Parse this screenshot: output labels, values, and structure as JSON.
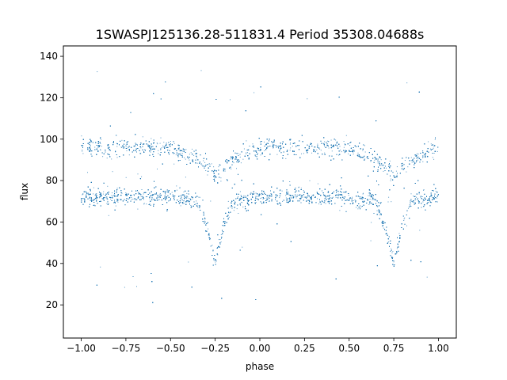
{
  "chart_data": {
    "type": "scatter",
    "title": "1SWASPJ125136.28-511831.4 Period 35308.04688s",
    "xlabel": "phase",
    "ylabel": "flux",
    "xlim": [
      -1.1,
      1.1
    ],
    "ylim": [
      4,
      145
    ],
    "xticks": [
      -1.0,
      -0.75,
      -0.5,
      -0.25,
      0.0,
      0.25,
      0.5,
      0.75,
      1.0
    ],
    "xtick_labels": [
      "−1.00",
      "−0.75",
      "−0.50",
      "−0.25",
      "0.00",
      "0.25",
      "0.50",
      "0.75",
      "1.00"
    ],
    "yticks": [
      20,
      40,
      60,
      80,
      100,
      120,
      140
    ],
    "ytick_labels": [
      "20",
      "40",
      "60",
      "80",
      "100",
      "120",
      "140"
    ],
    "grid": false,
    "marker_color": "#1f77b4",
    "series": [
      {
        "description_points": [
          {
            "x": -1.0,
            "y": 72
          },
          {
            "x": -0.75,
            "y": 72
          },
          {
            "x": -0.5,
            "y": 72
          },
          {
            "x": -0.35,
            "y": 70
          },
          {
            "x": -0.3,
            "y": 58
          },
          {
            "x": -0.25,
            "y": 41
          },
          {
            "x": -0.2,
            "y": 58
          },
          {
            "x": -0.15,
            "y": 70
          },
          {
            "x": 0.0,
            "y": 72
          },
          {
            "x": 0.25,
            "y": 72
          },
          {
            "x": 0.5,
            "y": 72
          },
          {
            "x": 0.65,
            "y": 70
          },
          {
            "x": 0.7,
            "y": 58
          },
          {
            "x": 0.75,
            "y": 41
          },
          {
            "x": 0.8,
            "y": 58
          },
          {
            "x": 0.85,
            "y": 70
          },
          {
            "x": 1.0,
            "y": 72
          }
        ],
        "upper_band_points": [
          {
            "x": -1.0,
            "y": 96
          },
          {
            "x": -0.5,
            "y": 96
          },
          {
            "x": -0.3,
            "y": 88
          },
          {
            "x": -0.25,
            "y": 82
          },
          {
            "x": -0.2,
            "y": 88
          },
          {
            "x": 0.0,
            "y": 96
          },
          {
            "x": 0.5,
            "y": 96
          },
          {
            "x": 0.7,
            "y": 88
          },
          {
            "x": 0.75,
            "y": 82
          },
          {
            "x": 0.8,
            "y": 88
          },
          {
            "x": 1.0,
            "y": 96
          }
        ]
      }
    ]
  }
}
